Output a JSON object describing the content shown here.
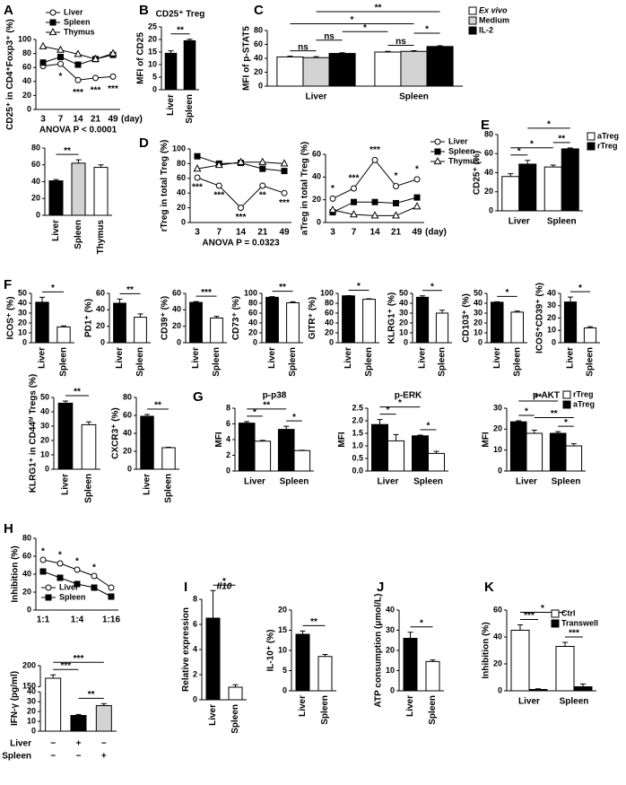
{
  "chart_data": [
    {
      "type": "line",
      "panel": "A",
      "ylabel": "CD25⁺ in CD4⁺Foxp3⁺ (%)",
      "categories": [
        "3",
        "7",
        "14",
        "21",
        "49"
      ],
      "xunit": "(day)",
      "note": "ANOVA P < 0.0001",
      "ylim": [
        0,
        100
      ],
      "yticks": [
        0,
        20,
        40,
        60,
        80,
        100
      ],
      "series": [
        {
          "name": "Liver",
          "color": "#000000",
          "marker": "circle",
          "filled": false,
          "values": [
            62,
            65,
            42,
            45,
            47
          ]
        },
        {
          "name": "Spleen",
          "color": "#000000",
          "marker": "square",
          "filled": true,
          "values": [
            67,
            75,
            64,
            72,
            78
          ]
        },
        {
          "name": "Thymus",
          "color": "#000000",
          "marker": "triangle",
          "filled": false,
          "values": [
            90,
            85,
            79,
            72,
            80
          ]
        }
      ],
      "annotations": [
        "*",
        "***",
        "***",
        "***"
      ]
    },
    {
      "type": "bar",
      "categories": [
        "Liver",
        "Spleen",
        "Thymus"
      ],
      "values": [
        41,
        62,
        57
      ],
      "errors": [
        1.5,
        4,
        3
      ],
      "colors": [
        "#000000",
        "#d3d3d3",
        "#ffffff"
      ],
      "ylim": [
        0,
        80
      ],
      "yticks": [
        0,
        20,
        40,
        60,
        80
      ],
      "annotations": [
        "**"
      ]
    },
    {
      "type": "bar",
      "panel": "B",
      "title": "CD25⁺ Treg",
      "ylabel": "MFI of CD25",
      "categories": [
        "Liver",
        "Spleen"
      ],
      "values": [
        14.5,
        19.5
      ],
      "errors": [
        1,
        0.6
      ],
      "colors": [
        "#000000",
        "#000000"
      ],
      "ylim": [
        0,
        25
      ],
      "yticks": [
        0,
        5,
        10,
        15,
        20,
        25
      ],
      "annotations": [
        "**"
      ]
    },
    {
      "type": "bar",
      "panel": "C",
      "ylabel": "MFI of p-STAT5",
      "categories": [
        "Liver",
        "Spleen"
      ],
      "series": [
        {
          "name": "Ex vivo",
          "color": "#ffffff",
          "values": [
            42,
            49
          ],
          "errors": [
            1,
            1
          ]
        },
        {
          "name": "Medium",
          "color": "#d3d3d3",
          "values": [
            41,
            50
          ],
          "errors": [
            1.5,
            1
          ]
        },
        {
          "name": "IL-2",
          "color": "#000000",
          "values": [
            47,
            57
          ],
          "errors": [
            1,
            1
          ]
        }
      ],
      "ylim": [
        0,
        80
      ],
      "yticks": [
        0,
        20,
        40,
        60,
        80
      ],
      "annotations": [
        "ns",
        "ns",
        "ns",
        "*",
        "*",
        "*",
        "**"
      ]
    },
    {
      "type": "line",
      "panel": "D",
      "ylabel": "rTreg in total Treg (%)",
      "categories": [
        "3",
        "7",
        "14",
        "21",
        "49"
      ],
      "note": "ANOVA P = 0.0323",
      "ylim": [
        0,
        100
      ],
      "yticks": [
        0,
        20,
        40,
        60,
        80,
        100
      ],
      "series": [
        {
          "color": "#000000",
          "marker": "circle",
          "filled": false,
          "values": [
            61,
            50,
            20,
            50,
            40
          ]
        },
        {
          "color": "#000000",
          "marker": "square",
          "filled": true,
          "values": [
            90,
            80,
            81,
            73,
            70
          ]
        },
        {
          "color": "#000000",
          "marker": "triangle",
          "filled": false,
          "values": [
            73,
            78,
            82,
            82,
            80
          ]
        }
      ],
      "annotations": [
        "***",
        "***",
        "***",
        "**",
        "***"
      ]
    },
    {
      "type": "line",
      "ylabel": "aTreg in total Treg (%)",
      "categories": [
        "3",
        "7",
        "14",
        "21",
        "49"
      ],
      "xunit": "(day)",
      "ylim": [
        0,
        60
      ],
      "yticks": [
        0,
        20,
        40,
        60
      ],
      "series": [
        {
          "name": "Liver",
          "color": "#000000",
          "marker": "circle",
          "filled": false,
          "values": [
            21,
            30,
            55,
            32,
            38
          ]
        },
        {
          "name": "Spleen",
          "color": "#000000",
          "marker": "square",
          "filled": true,
          "values": [
            9,
            18,
            18,
            17,
            22
          ]
        },
        {
          "name": "Thymus",
          "color": "#000000",
          "marker": "triangle",
          "filled": false,
          "values": [
            11,
            7,
            6,
            6,
            14
          ]
        }
      ],
      "annotations": [
        "*",
        "***",
        "***",
        "*",
        "*"
      ]
    },
    {
      "type": "bar",
      "panel": "E",
      "ylabel": "CD25⁺ (%)",
      "categories": [
        "Liver",
        "Spleen"
      ],
      "series": [
        {
          "name": "aTreg",
          "color": "#ffffff",
          "values": [
            36,
            46
          ],
          "errors": [
            3,
            2
          ]
        },
        {
          "name": "rTreg",
          "color": "#000000",
          "values": [
            49,
            65
          ],
          "errors": [
            4,
            1
          ]
        }
      ],
      "ylim": [
        0,
        80
      ],
      "yticks": [
        0,
        20,
        40,
        60,
        80
      ],
      "annotations": [
        "*",
        "*",
        "*",
        "**"
      ]
    },
    {
      "type": "bar",
      "panel": "F",
      "ylabel": "ICOS⁺ (%)",
      "categories": [
        "Liver",
        "Spleen"
      ],
      "values": [
        41,
        16
      ],
      "errors": [
        5,
        1
      ],
      "colors": [
        "#000000",
        "#ffffff"
      ],
      "ylim": [
        0,
        50
      ],
      "yticks": [
        0,
        10,
        20,
        30,
        40,
        50
      ],
      "annotations": [
        "*"
      ]
    },
    {
      "type": "bar",
      "ylabel": "PD1⁺ (%)",
      "categories": [
        "Liver",
        "Spleen"
      ],
      "values": [
        48,
        31
      ],
      "errors": [
        5,
        4
      ],
      "colors": [
        "#000000",
        "#ffffff"
      ],
      "ylim": [
        0,
        60
      ],
      "yticks": [
        0,
        20,
        40,
        60
      ],
      "annotations": [
        "**"
      ]
    },
    {
      "type": "bar",
      "ylabel": "CD39⁺ (%)",
      "categories": [
        "Liver",
        "Spleen"
      ],
      "values": [
        49,
        30
      ],
      "errors": [
        1,
        2
      ],
      "colors": [
        "#000000",
        "#ffffff"
      ],
      "ylim": [
        0,
        60
      ],
      "yticks": [
        0,
        20,
        40,
        60
      ],
      "annotations": [
        "***"
      ]
    },
    {
      "type": "bar",
      "ylabel": "CD73⁺ (%)",
      "categories": [
        "Liver",
        "Spleen"
      ],
      "values": [
        92,
        81
      ],
      "errors": [
        1.5,
        2
      ],
      "colors": [
        "#000000",
        "#ffffff"
      ],
      "ylim": [
        0,
        100
      ],
      "yticks": [
        0,
        20,
        40,
        60,
        80,
        100
      ],
      "annotations": [
        "**"
      ]
    },
    {
      "type": "bar",
      "ylabel": "GITR⁺ (%)",
      "categories": [
        "Liver",
        "Spleen"
      ],
      "values": [
        95,
        88
      ],
      "errors": [
        0.5,
        1
      ],
      "colors": [
        "#000000",
        "#ffffff"
      ],
      "ylim": [
        0,
        100
      ],
      "yticks": [
        0,
        20,
        40,
        60,
        80,
        100
      ],
      "annotations": [
        "*"
      ]
    },
    {
      "type": "bar",
      "ylabel": "KLRG1⁺ (%)",
      "categories": [
        "Liver",
        "Spleen"
      ],
      "values": [
        46,
        30
      ],
      "errors": [
        1.5,
        3
      ],
      "colors": [
        "#000000",
        "#ffffff"
      ],
      "ylim": [
        0,
        50
      ],
      "yticks": [
        0,
        10,
        20,
        30,
        40,
        50
      ],
      "annotations": [
        "*"
      ]
    },
    {
      "type": "bar",
      "ylabel": "CD103⁺ (%)",
      "categories": [
        "Liver",
        "Spleen"
      ],
      "values": [
        41,
        31
      ],
      "errors": [
        0.5,
        1
      ],
      "colors": [
        "#000000",
        "#ffffff"
      ],
      "ylim": [
        0,
        50
      ],
      "yticks": [
        0,
        10,
        20,
        30,
        40,
        50
      ],
      "annotations": [
        "*"
      ]
    },
    {
      "type": "bar",
      "ylabel": "ICOS⁺CD39⁺ (%)",
      "categories": [
        "Liver",
        "Spleen"
      ],
      "values": [
        33,
        12
      ],
      "errors": [
        4,
        1
      ],
      "colors": [
        "#000000",
        "#ffffff"
      ],
      "ylim": [
        0,
        40
      ],
      "yticks": [
        0,
        10,
        20,
        30,
        40
      ],
      "annotations": [
        "*"
      ]
    },
    {
      "type": "bar",
      "ylabel": "KLRG1⁺ in CD44ʰⁱ Tregs (%)",
      "categories": [
        "Liver",
        "Spleen"
      ],
      "values": [
        46,
        31
      ],
      "errors": [
        1.5,
        2
      ],
      "colors": [
        "#000000",
        "#ffffff"
      ],
      "ylim": [
        0,
        50
      ],
      "yticks": [
        0,
        10,
        20,
        30,
        40,
        50
      ],
      "annotations": [
        "**"
      ]
    },
    {
      "type": "bar",
      "ylabel": "CXCR3⁺ (%)",
      "categories": [
        "Liver",
        "Spleen"
      ],
      "values": [
        59,
        24
      ],
      "errors": [
        2,
        0.5
      ],
      "colors": [
        "#000000",
        "#ffffff"
      ],
      "ylim": [
        0,
        80
      ],
      "yticks": [
        0,
        20,
        40,
        60,
        80
      ],
      "annotations": [
        "**"
      ]
    },
    {
      "type": "bar",
      "panel": "G",
      "title": "p-p38",
      "ylabel": "MFI",
      "categories": [
        "Liver",
        "Spleen"
      ],
      "series": [
        {
          "name": "aTreg",
          "color": "#000000",
          "values": [
            6.1,
            5.3
          ],
          "errors": [
            0.2,
            0.4
          ]
        },
        {
          "name": "rTreg",
          "color": "#ffffff",
          "values": [
            3.8,
            2.6
          ],
          "errors": [
            0.1,
            0.05
          ]
        }
      ],
      "ylim": [
        0,
        8
      ],
      "yticks": [
        0,
        2,
        4,
        6,
        8
      ],
      "annotations": [
        "*",
        "**",
        "*"
      ]
    },
    {
      "type": "bar",
      "title": "p-ERK",
      "ylabel": "MFI",
      "categories": [
        "Liver",
        "Spleen"
      ],
      "series": [
        {
          "name": "aTreg",
          "color": "#000000",
          "values": [
            1.85,
            1.4
          ],
          "errors": [
            0.2,
            0.03
          ]
        },
        {
          "name": "rTreg",
          "color": "#ffffff",
          "values": [
            1.2,
            0.7
          ],
          "errors": [
            0.25,
            0.08
          ]
        }
      ],
      "ylim": [
        0,
        2.5
      ],
      "yticks": [
        {
          "value": 0,
          "label": "0.0"
        },
        0.5,
        {
          "value": 1,
          "label": "1.0"
        },
        1.5,
        {
          "value": 2,
          "label": "2.0"
        },
        2.5
      ],
      "annotations": [
        "*",
        "*",
        "*"
      ]
    },
    {
      "type": "bar",
      "title": "p-AKT",
      "ylabel": "MFI",
      "categories": [
        "Liver",
        "Spleen"
      ],
      "series": [
        {
          "name": "aTreg",
          "color": "#000000",
          "values": [
            23.5,
            18
          ],
          "errors": [
            0.5,
            0.8
          ]
        },
        {
          "name": "rTreg",
          "color": "#ffffff",
          "values": [
            18,
            12
          ],
          "errors": [
            1.5,
            1
          ]
        }
      ],
      "ylim": [
        0,
        30
      ],
      "yticks": [
        0,
        10,
        20,
        30
      ],
      "annotations": [
        "**",
        "*",
        "**",
        "*"
      ]
    },
    {
      "type": "line",
      "panel": "H",
      "ylabel": "Inhibition (%)",
      "categories": [
        "1:1",
        null,
        "1:4",
        null,
        "1:16"
      ],
      "ylim": [
        0,
        80
      ],
      "yticks": [
        0,
        20,
        40,
        60,
        80
      ],
      "series": [
        {
          "name": "Liver",
          "color": "#000000",
          "marker": "circle",
          "filled": false,
          "values": [
            56,
            52,
            45,
            38,
            25
          ]
        },
        {
          "name": "Spleen",
          "color": "#000000",
          "marker": "square",
          "filled": true,
          "values": [
            43,
            36,
            29,
            25,
            15
          ]
        }
      ],
      "annotations": [
        "*",
        "*",
        "*",
        "*"
      ]
    },
    {
      "type": "bar",
      "ylabel": "IFN-γ (pg/ml)",
      "values": [
        170,
        16,
        26
      ],
      "errors": [
        8,
        1,
        2
      ],
      "colors": [
        "#ffffff",
        "#000000",
        "#d3d3d3"
      ],
      "ylim": [
        0,
        200
      ],
      "ybreak": [
        40,
        150
      ],
      "yticks": [
        0,
        10,
        20,
        30,
        40,
        150,
        200
      ],
      "conditions": [
        {
          "name": "Liver",
          "signs": [
            "−",
            "+",
            "−"
          ]
        },
        {
          "name": "Spleen",
          "signs": [
            "−",
            "−",
            "+"
          ]
        }
      ],
      "annotations": [
        "***",
        "***",
        "**"
      ]
    },
    {
      "type": "bar",
      "panel": "I",
      "title": "Il10",
      "ylabel": "Relative expression",
      "categories": [
        "Liver",
        "Spleen"
      ],
      "values": [
        6.5,
        1.0
      ],
      "errors": [
        2.2,
        0.2
      ],
      "colors": [
        "#000000",
        "#ffffff"
      ],
      "ylim": [
        0,
        8
      ],
      "yticks": [
        0,
        2,
        4,
        6,
        8
      ],
      "annotations": [
        "*"
      ]
    },
    {
      "type": "bar",
      "ylabel": "IL-10⁺ (%)",
      "categories": [
        "Liver",
        "Spleen"
      ],
      "values": [
        14,
        8.5
      ],
      "errors": [
        0.8,
        0.5
      ],
      "colors": [
        "#000000",
        "#ffffff"
      ],
      "ylim": [
        0,
        20
      ],
      "yticks": [
        0,
        5,
        10,
        15,
        20
      ],
      "annotations": [
        "**"
      ]
    },
    {
      "type": "bar",
      "panel": "J",
      "ylabel": "ATP consumption (μmol/L)",
      "categories": [
        "Liver",
        "Spleen"
      ],
      "values": [
        26,
        14.5
      ],
      "errors": [
        3,
        0.8
      ],
      "colors": [
        "#000000",
        "#ffffff"
      ],
      "ylim": [
        0,
        40
      ],
      "yticks": [
        0,
        10,
        20,
        30,
        40
      ],
      "annotations": [
        "*"
      ]
    },
    {
      "type": "bar",
      "panel": "K",
      "ylabel": "Inhibition (%)",
      "categories": [
        "Liver",
        "Spleen"
      ],
      "series": [
        {
          "name": "Ctrl",
          "color": "#ffffff",
          "values": [
            45,
            33
          ],
          "errors": [
            4,
            3
          ]
        },
        {
          "name": "Transwell",
          "color": "#000000",
          "values": [
            1,
            3
          ],
          "errors": [
            0.5,
            2
          ]
        }
      ],
      "ylim": [
        0,
        60
      ],
      "yticks": [
        0,
        20,
        40,
        60
      ],
      "annotations": [
        "***",
        "*",
        "***"
      ]
    }
  ]
}
